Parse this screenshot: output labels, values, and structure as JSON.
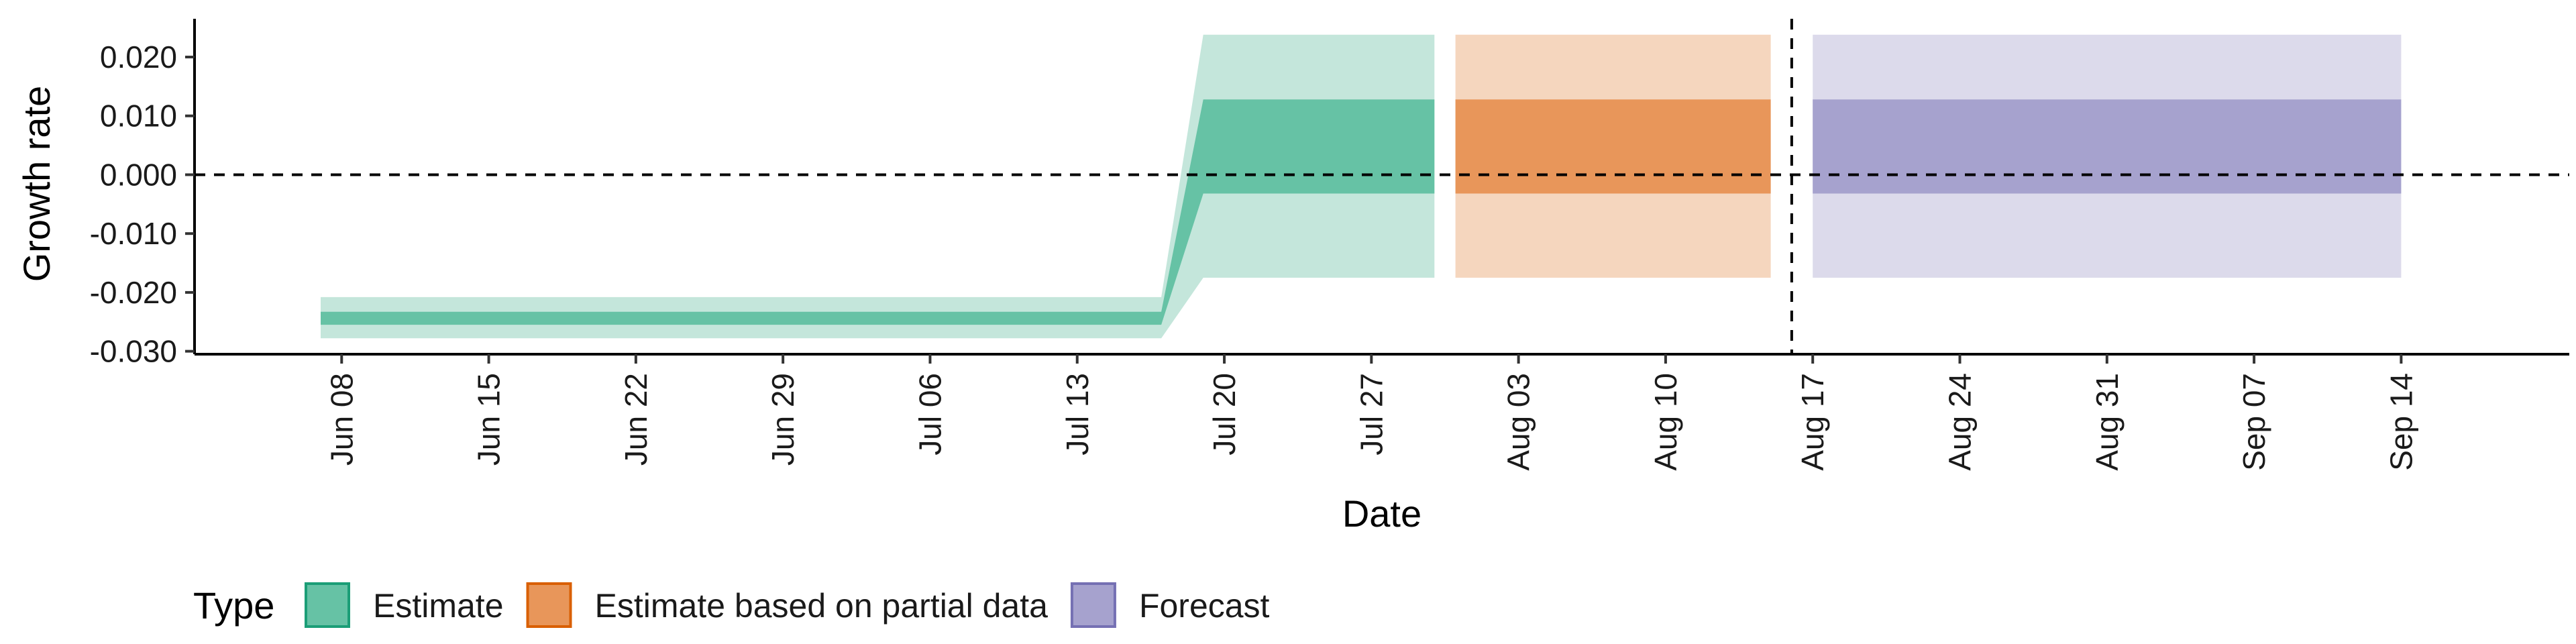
{
  "chart_data": {
    "type": "area",
    "xlabel": "Date",
    "ylabel": "Growth rate",
    "ylim": [
      -0.0305,
      0.0265
    ],
    "y_ticks": [
      -0.03,
      -0.02,
      -0.01,
      0.0,
      0.01,
      0.02
    ],
    "y_tick_labels": [
      "-0.030",
      "-0.020",
      "-0.010",
      "0.000",
      "0.010",
      "0.020"
    ],
    "xlim": [
      "2020-06-01",
      "2020-09-22"
    ],
    "x_ticks": [
      "2020-06-08",
      "2020-06-15",
      "2020-06-22",
      "2020-06-29",
      "2020-07-06",
      "2020-07-13",
      "2020-07-20",
      "2020-07-27",
      "2020-08-03",
      "2020-08-10",
      "2020-08-17",
      "2020-08-24",
      "2020-08-31",
      "2020-09-07",
      "2020-09-14"
    ],
    "x_tick_labels": [
      "Jun 08",
      "Jun 15",
      "Jun 22",
      "Jun 29",
      "Jul 06",
      "Jul 13",
      "Jul 20",
      "Jul 27",
      "Aug 03",
      "Aug 10",
      "Aug 17",
      "Aug 24",
      "Aug 31",
      "Sep 07",
      "Sep 14"
    ],
    "reference_lines": {
      "hline": 0.0,
      "vline": "2020-08-16"
    },
    "grid": false,
    "legend": {
      "title": "Type",
      "position": "bottom-left",
      "entries": [
        {
          "label": "Estimate",
          "fill": "#66C2A5",
          "border": "#1B9E77"
        },
        {
          "label": "Estimate based on partial data",
          "fill": "#E8965A",
          "border": "#D95F02"
        },
        {
          "label": "Forecast",
          "fill": "#A6A2CE",
          "border": "#7570B3"
        }
      ]
    },
    "series": [
      {
        "name": "Estimate",
        "color_inner": "#66C2A5",
        "color_outer": "#C4E6DB",
        "x": [
          "2020-06-07",
          "2020-07-17",
          "2020-07-19",
          "2020-07-30"
        ],
        "lower_90": [
          -0.0278,
          -0.0278,
          -0.0175,
          -0.0175
        ],
        "lower_50": [
          -0.0255,
          -0.0255,
          -0.0032,
          -0.0032
        ],
        "upper_50": [
          -0.0233,
          -0.0233,
          0.0128,
          0.0128
        ],
        "upper_90": [
          -0.0208,
          -0.0208,
          0.0238,
          0.0238
        ]
      },
      {
        "name": "Estimate based on partial data",
        "color_inner": "#E8965A",
        "color_outer": "#F5D6BE",
        "x": [
          "2020-07-31",
          "2020-08-15"
        ],
        "lower_90": [
          -0.0175,
          -0.0175
        ],
        "lower_50": [
          -0.0032,
          -0.0032
        ],
        "upper_50": [
          0.0128,
          0.0128
        ],
        "upper_90": [
          0.0238,
          0.0238
        ]
      },
      {
        "name": "Forecast",
        "color_inner": "#A6A2CE",
        "color_outer": "#DCDAEB",
        "x": [
          "2020-08-17",
          "2020-09-14"
        ],
        "lower_90": [
          -0.0175,
          -0.0175
        ],
        "lower_50": [
          -0.0032,
          -0.0032
        ],
        "upper_50": [
          0.0128,
          0.0128
        ],
        "upper_90": [
          0.0238,
          0.0238
        ]
      }
    ]
  }
}
